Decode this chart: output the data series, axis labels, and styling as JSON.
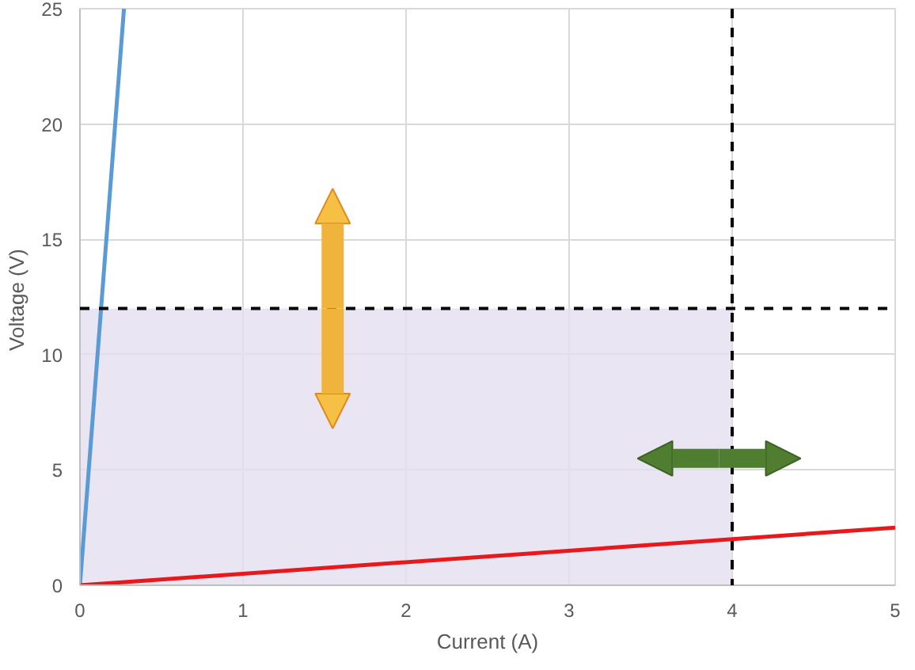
{
  "chart_data": {
    "type": "line",
    "xlabel": "Current (A)",
    "ylabel": "Voltage  (V)",
    "xlim": [
      0,
      5
    ],
    "ylim": [
      0,
      25
    ],
    "xticks": [
      0,
      1,
      2,
      3,
      4,
      5
    ],
    "yticks": [
      0,
      5,
      10,
      15,
      20,
      25
    ],
    "grid": true,
    "marker": "none",
    "line_style": "solid",
    "series": [
      {
        "type": "area",
        "x": [
          0,
          4
        ],
        "values": [
          12,
          12
        ],
        "color": "#e4dff0"
      },
      {
        "x": [
          0,
          0.27
        ],
        "values": [
          0,
          25
        ],
        "color": "#5b9bd5"
      },
      {
        "x": [
          0,
          5
        ],
        "values": [
          0,
          2.5
        ],
        "color": "#e8191c"
      }
    ],
    "ref_lines": [
      {
        "axis": "x",
        "value": 4,
        "color": "#000000",
        "line_style": "dashed"
      },
      {
        "axis": "y",
        "value": 12,
        "color": "#000000",
        "line_style": "dashed"
      }
    ]
  }
}
